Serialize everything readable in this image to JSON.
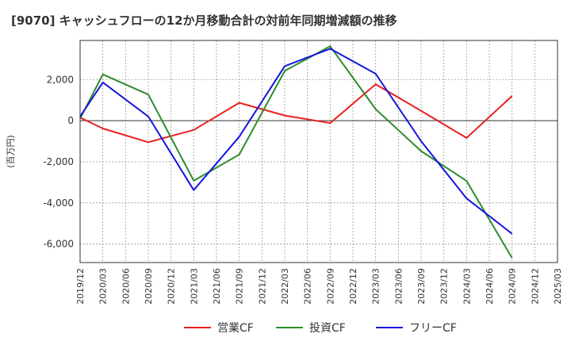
{
  "chart_data": {
    "type": "line",
    "title": "[9070]  キャッシュフローの12か月移動合計の対前年同期増減額の推移",
    "ylabel": "(百万円)",
    "xlabel": "",
    "ylim": [
      -6900,
      3900
    ],
    "yticks": [
      2000,
      0,
      -2000,
      -4000,
      -6000
    ],
    "ytick_labels": [
      "2,000",
      "0",
      "-2,000",
      "-4,000",
      "-6,000"
    ],
    "x_ticks": [
      "2019/12",
      "2020/03",
      "2020/06",
      "2020/09",
      "2020/12",
      "2021/03",
      "2021/06",
      "2021/09",
      "2021/12",
      "2022/03",
      "2022/06",
      "2022/09",
      "2022/12",
      "2023/03",
      "2023/06",
      "2023/09",
      "2023/12",
      "2024/03",
      "2024/06",
      "2024/09",
      "2024/12",
      "2025/03"
    ],
    "grid": true,
    "legend_position": "bottom",
    "series": [
      {
        "name": "営業CF",
        "color": "#e8201f",
        "points": [
          [
            "2019/12",
            150
          ],
          [
            "2020/03",
            -380
          ],
          [
            "2020/09",
            -1050
          ],
          [
            "2021/03",
            -450
          ],
          [
            "2021/09",
            870
          ],
          [
            "2022/03",
            250
          ],
          [
            "2022/09",
            -120
          ],
          [
            "2023/03",
            1770
          ],
          [
            "2023/09",
            480
          ],
          [
            "2024/03",
            -840
          ],
          [
            "2024/09",
            1200
          ]
        ]
      },
      {
        "name": "投資CF",
        "color": "#2e8b2e",
        "points": [
          [
            "2019/12",
            100
          ],
          [
            "2020/03",
            2250
          ],
          [
            "2020/09",
            1270
          ],
          [
            "2021/03",
            -2920
          ],
          [
            "2021/09",
            -1650
          ],
          [
            "2022/03",
            2420
          ],
          [
            "2022/09",
            3620
          ],
          [
            "2023/03",
            560
          ],
          [
            "2023/09",
            -1480
          ],
          [
            "2024/03",
            -2930
          ],
          [
            "2024/09",
            -6680
          ]
        ]
      },
      {
        "name": "フリーCF",
        "color": "#1515e0",
        "points": [
          [
            "2019/12",
            200
          ],
          [
            "2020/03",
            1860
          ],
          [
            "2020/09",
            200
          ],
          [
            "2021/03",
            -3380
          ],
          [
            "2021/09",
            -780
          ],
          [
            "2022/03",
            2650
          ],
          [
            "2022/09",
            3500
          ],
          [
            "2023/03",
            2280
          ],
          [
            "2023/09",
            -1000
          ],
          [
            "2024/03",
            -3780
          ],
          [
            "2024/09",
            -5500
          ]
        ]
      }
    ]
  }
}
